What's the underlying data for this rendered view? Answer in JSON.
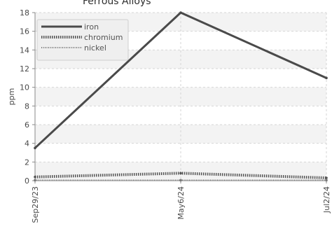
{
  "chart_data": {
    "type": "line",
    "title": "Ferrous Alloys",
    "xlabel": "",
    "ylabel": "ppm",
    "categories": [
      "Sep29/23",
      "May6/24",
      "Jul2/24"
    ],
    "ylim": [
      0,
      18
    ],
    "yticks": [
      0,
      2,
      4,
      6,
      8,
      10,
      12,
      14,
      16,
      18
    ],
    "grid": true,
    "legend_position": "top-left",
    "series": [
      {
        "name": "iron",
        "values": [
          3.5,
          18,
          11
        ],
        "color": "#4a4a4a",
        "style": "solid"
      },
      {
        "name": "chromium",
        "values": [
          0.4,
          0.8,
          0.3
        ],
        "color": "#555555",
        "style": "dense-dashed"
      },
      {
        "name": "nickel",
        "values": [
          0.05,
          0.05,
          0.05
        ],
        "color": "#777777",
        "style": "dotted"
      }
    ],
    "colors": {
      "band": "#f3f3f3",
      "grid": "#d6d6d6",
      "axis": "#8a8a8a",
      "legend_bg": "#efefef",
      "legend_border": "#cfcfcf"
    }
  }
}
